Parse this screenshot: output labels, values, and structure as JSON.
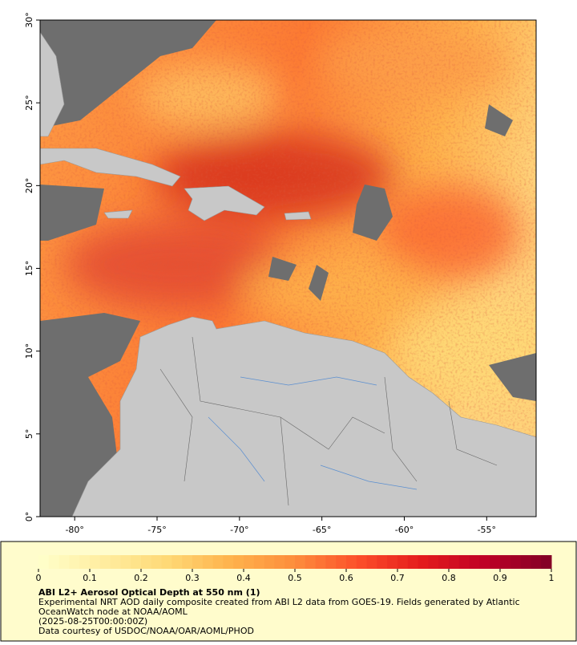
{
  "map": {
    "xlim": [
      -82.1,
      -52
    ],
    "ylim": [
      0,
      30
    ],
    "xticks": [
      {
        "value": -80,
        "label": "-80°"
      },
      {
        "value": -75,
        "label": "-75°"
      },
      {
        "value": -70,
        "label": "-70°"
      },
      {
        "value": -65,
        "label": "-65°"
      },
      {
        "value": -60,
        "label": "-60°"
      },
      {
        "value": -55,
        "label": "-55°"
      }
    ],
    "yticks": [
      {
        "value": 0,
        "label": "0°"
      },
      {
        "value": 5,
        "label": "5°"
      },
      {
        "value": 10,
        "label": "10°"
      },
      {
        "value": 15,
        "label": "15°"
      },
      {
        "value": 20,
        "label": "20°"
      },
      {
        "value": 25,
        "label": "25°"
      },
      {
        "value": 30,
        "label": "30°"
      }
    ]
  },
  "colorbar": {
    "lim": [
      0,
      1
    ],
    "ticks": [
      0,
      0.1,
      0.2,
      0.3,
      0.4,
      0.5,
      0.6,
      0.7,
      0.8,
      0.9,
      1
    ],
    "colors": [
      "#ffffcc",
      "#ffeda0",
      "#fed976",
      "#feb24c",
      "#fd8d3c",
      "#fc4e2a",
      "#e31a1c",
      "#bd0026",
      "#800026"
    ]
  },
  "caption": {
    "title": "ABI L2+ Aerosol Optical Depth at 550 nm (1)",
    "lines": [
      "Experimental NRT AOD daily composite created from ABI L2 data from GOES-19. Fields generated by Atlantic",
      "OceanWatch node at NOAA/AOML",
      "(2025-08-25T00:00:00Z)",
      "Data courtesy of USDOC/NOAA/OAR/AOML/PHOD"
    ]
  }
}
